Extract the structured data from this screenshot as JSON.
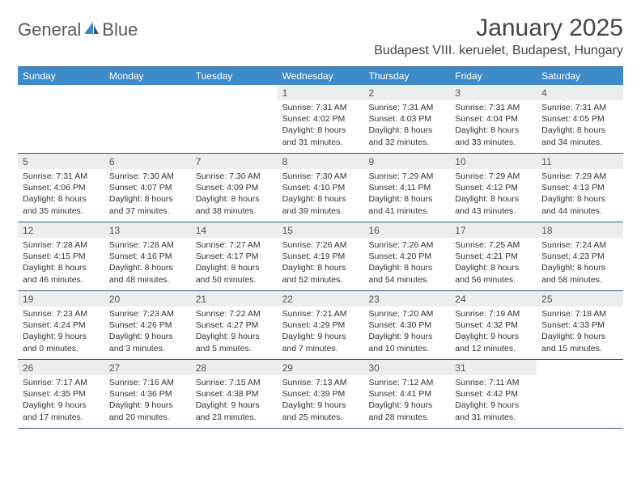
{
  "logo": {
    "text1": "General",
    "text2": "Blue",
    "accent_color": "#3d8bc9"
  },
  "title": "January 2025",
  "location": "Budapest VIII. keruelet, Budapest, Hungary",
  "colors": {
    "header_bg": "#3d8bc9",
    "header_text": "#ffffff",
    "border": "#2a5d8a",
    "daynum_bg": "#eceded",
    "body_text": "#333333"
  },
  "weekdays": [
    "Sunday",
    "Monday",
    "Tuesday",
    "Wednesday",
    "Thursday",
    "Friday",
    "Saturday"
  ],
  "weeks": [
    [
      null,
      null,
      null,
      {
        "n": "1",
        "sr": "Sunrise: 7:31 AM",
        "ss": "Sunset: 4:02 PM",
        "d1": "Daylight: 8 hours",
        "d2": "and 31 minutes."
      },
      {
        "n": "2",
        "sr": "Sunrise: 7:31 AM",
        "ss": "Sunset: 4:03 PM",
        "d1": "Daylight: 8 hours",
        "d2": "and 32 minutes."
      },
      {
        "n": "3",
        "sr": "Sunrise: 7:31 AM",
        "ss": "Sunset: 4:04 PM",
        "d1": "Daylight: 8 hours",
        "d2": "and 33 minutes."
      },
      {
        "n": "4",
        "sr": "Sunrise: 7:31 AM",
        "ss": "Sunset: 4:05 PM",
        "d1": "Daylight: 8 hours",
        "d2": "and 34 minutes."
      }
    ],
    [
      {
        "n": "5",
        "sr": "Sunrise: 7:31 AM",
        "ss": "Sunset: 4:06 PM",
        "d1": "Daylight: 8 hours",
        "d2": "and 35 minutes."
      },
      {
        "n": "6",
        "sr": "Sunrise: 7:30 AM",
        "ss": "Sunset: 4:07 PM",
        "d1": "Daylight: 8 hours",
        "d2": "and 37 minutes."
      },
      {
        "n": "7",
        "sr": "Sunrise: 7:30 AM",
        "ss": "Sunset: 4:09 PM",
        "d1": "Daylight: 8 hours",
        "d2": "and 38 minutes."
      },
      {
        "n": "8",
        "sr": "Sunrise: 7:30 AM",
        "ss": "Sunset: 4:10 PM",
        "d1": "Daylight: 8 hours",
        "d2": "and 39 minutes."
      },
      {
        "n": "9",
        "sr": "Sunrise: 7:29 AM",
        "ss": "Sunset: 4:11 PM",
        "d1": "Daylight: 8 hours",
        "d2": "and 41 minutes."
      },
      {
        "n": "10",
        "sr": "Sunrise: 7:29 AM",
        "ss": "Sunset: 4:12 PM",
        "d1": "Daylight: 8 hours",
        "d2": "and 43 minutes."
      },
      {
        "n": "11",
        "sr": "Sunrise: 7:29 AM",
        "ss": "Sunset: 4:13 PM",
        "d1": "Daylight: 8 hours",
        "d2": "and 44 minutes."
      }
    ],
    [
      {
        "n": "12",
        "sr": "Sunrise: 7:28 AM",
        "ss": "Sunset: 4:15 PM",
        "d1": "Daylight: 8 hours",
        "d2": "and 46 minutes."
      },
      {
        "n": "13",
        "sr": "Sunrise: 7:28 AM",
        "ss": "Sunset: 4:16 PM",
        "d1": "Daylight: 8 hours",
        "d2": "and 48 minutes."
      },
      {
        "n": "14",
        "sr": "Sunrise: 7:27 AM",
        "ss": "Sunset: 4:17 PM",
        "d1": "Daylight: 8 hours",
        "d2": "and 50 minutes."
      },
      {
        "n": "15",
        "sr": "Sunrise: 7:26 AM",
        "ss": "Sunset: 4:19 PM",
        "d1": "Daylight: 8 hours",
        "d2": "and 52 minutes."
      },
      {
        "n": "16",
        "sr": "Sunrise: 7:26 AM",
        "ss": "Sunset: 4:20 PM",
        "d1": "Daylight: 8 hours",
        "d2": "and 54 minutes."
      },
      {
        "n": "17",
        "sr": "Sunrise: 7:25 AM",
        "ss": "Sunset: 4:21 PM",
        "d1": "Daylight: 8 hours",
        "d2": "and 56 minutes."
      },
      {
        "n": "18",
        "sr": "Sunrise: 7:24 AM",
        "ss": "Sunset: 4:23 PM",
        "d1": "Daylight: 8 hours",
        "d2": "and 58 minutes."
      }
    ],
    [
      {
        "n": "19",
        "sr": "Sunrise: 7:23 AM",
        "ss": "Sunset: 4:24 PM",
        "d1": "Daylight: 9 hours",
        "d2": "and 0 minutes."
      },
      {
        "n": "20",
        "sr": "Sunrise: 7:23 AM",
        "ss": "Sunset: 4:26 PM",
        "d1": "Daylight: 9 hours",
        "d2": "and 3 minutes."
      },
      {
        "n": "21",
        "sr": "Sunrise: 7:22 AM",
        "ss": "Sunset: 4:27 PM",
        "d1": "Daylight: 9 hours",
        "d2": "and 5 minutes."
      },
      {
        "n": "22",
        "sr": "Sunrise: 7:21 AM",
        "ss": "Sunset: 4:29 PM",
        "d1": "Daylight: 9 hours",
        "d2": "and 7 minutes."
      },
      {
        "n": "23",
        "sr": "Sunrise: 7:20 AM",
        "ss": "Sunset: 4:30 PM",
        "d1": "Daylight: 9 hours",
        "d2": "and 10 minutes."
      },
      {
        "n": "24",
        "sr": "Sunrise: 7:19 AM",
        "ss": "Sunset: 4:32 PM",
        "d1": "Daylight: 9 hours",
        "d2": "and 12 minutes."
      },
      {
        "n": "25",
        "sr": "Sunrise: 7:18 AM",
        "ss": "Sunset: 4:33 PM",
        "d1": "Daylight: 9 hours",
        "d2": "and 15 minutes."
      }
    ],
    [
      {
        "n": "26",
        "sr": "Sunrise: 7:17 AM",
        "ss": "Sunset: 4:35 PM",
        "d1": "Daylight: 9 hours",
        "d2": "and 17 minutes."
      },
      {
        "n": "27",
        "sr": "Sunrise: 7:16 AM",
        "ss": "Sunset: 4:36 PM",
        "d1": "Daylight: 9 hours",
        "d2": "and 20 minutes."
      },
      {
        "n": "28",
        "sr": "Sunrise: 7:15 AM",
        "ss": "Sunset: 4:38 PM",
        "d1": "Daylight: 9 hours",
        "d2": "and 23 minutes."
      },
      {
        "n": "29",
        "sr": "Sunrise: 7:13 AM",
        "ss": "Sunset: 4:39 PM",
        "d1": "Daylight: 9 hours",
        "d2": "and 25 minutes."
      },
      {
        "n": "30",
        "sr": "Sunrise: 7:12 AM",
        "ss": "Sunset: 4:41 PM",
        "d1": "Daylight: 9 hours",
        "d2": "and 28 minutes."
      },
      {
        "n": "31",
        "sr": "Sunrise: 7:11 AM",
        "ss": "Sunset: 4:42 PM",
        "d1": "Daylight: 9 hours",
        "d2": "and 31 minutes."
      },
      null
    ]
  ]
}
